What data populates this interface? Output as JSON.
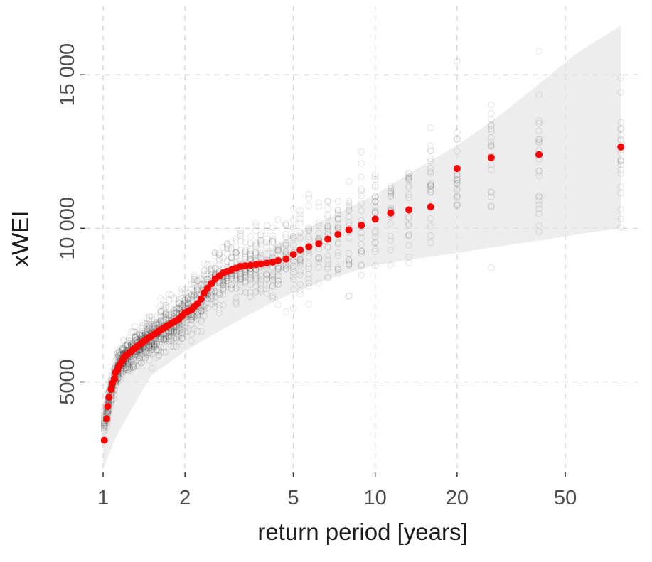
{
  "chart_data": {
    "type": "scatter",
    "title": "",
    "xlabel": "return period [years]",
    "ylabel": "xWEI",
    "x_scale": "log10",
    "x_domain": [
      0.86,
      94
    ],
    "y_domain": [
      2050,
      17250
    ],
    "x_ticks": [
      1,
      2,
      5,
      10,
      20,
      50
    ],
    "x_tick_labels": [
      "1",
      "2",
      "5",
      "10",
      "20",
      "50"
    ],
    "y_ticks": [
      5000,
      10000,
      15000
    ],
    "y_tick_labels": [
      "5000",
      "10 000",
      "15 000"
    ],
    "grid": {
      "dashed": true,
      "color": "#d3d3d3",
      "visible": true
    },
    "legend": "none",
    "colors": {
      "observed": "#ff0000",
      "ensemble_stroke": "#1a1a1a",
      "ribbon": "#e3e3e3",
      "axis_text": "#4d4d4d",
      "axis_title": "#1a1a1a",
      "tick_mark": "#333333",
      "background": "#ffffff"
    },
    "ribbon": {
      "t": [
        1,
        1.1,
        1.25,
        1.5,
        2,
        2.5,
        3,
        4,
        5,
        7,
        10,
        14,
        20,
        28,
        40,
        55,
        80
      ],
      "upper": [
        4300,
        5300,
        6000,
        6900,
        7700,
        8300,
        8800,
        9300,
        9800,
        10400,
        11100,
        11900,
        12700,
        13600,
        14700,
        15700,
        16600
      ],
      "lower": [
        2150,
        3100,
        4000,
        5200,
        6000,
        6500,
        6900,
        7500,
        7900,
        8400,
        8800,
        9000,
        9200,
        9400,
        9600,
        9800,
        10000
      ]
    },
    "observed": {
      "t": [
        80,
        40,
        26.7,
        20,
        16,
        13.3,
        11.4,
        10,
        8.9,
        8,
        7.3,
        6.7,
        6.2,
        5.7,
        5.3,
        5,
        4.7,
        4.4,
        4.2,
        4,
        3.8,
        3.64,
        3.48,
        3.33,
        3.2,
        3.08,
        2.96,
        2.86,
        2.76,
        2.67,
        2.58,
        2.5,
        2.42,
        2.35,
        2.29,
        2.22,
        2.16,
        2.11,
        2.05,
        2,
        1.95,
        1.9,
        1.86,
        1.82,
        1.78,
        1.74,
        1.7,
        1.67,
        1.63,
        1.6,
        1.57,
        1.54,
        1.51,
        1.48,
        1.45,
        1.43,
        1.4,
        1.38,
        1.36,
        1.33,
        1.31,
        1.29,
        1.27,
        1.25,
        1.23,
        1.21,
        1.19,
        1.18,
        1.16,
        1.14,
        1.13,
        1.11,
        1.1,
        1.08,
        1.07,
        1.05,
        1.04,
        1.03,
        1.01
      ],
      "xwei": [
        12650,
        12400,
        12300,
        11950,
        10700,
        10600,
        10500,
        10300,
        10100,
        9950,
        9800,
        9650,
        9500,
        9400,
        9300,
        9150,
        9000,
        8950,
        8900,
        8870,
        8840,
        8820,
        8800,
        8780,
        8760,
        8700,
        8650,
        8600,
        8550,
        8450,
        8350,
        8200,
        8050,
        7900,
        7700,
        7550,
        7450,
        7350,
        7300,
        7250,
        7150,
        7050,
        7000,
        6950,
        6900,
        6850,
        6800,
        6750,
        6700,
        6650,
        6600,
        6550,
        6500,
        6450,
        6400,
        6350,
        6300,
        6250,
        6200,
        6150,
        6100,
        6050,
        6000,
        5950,
        5900,
        5850,
        5800,
        5700,
        5600,
        5500,
        5400,
        5300,
        5100,
        4950,
        4750,
        4500,
        4200,
        3800,
        3100
      ]
    },
    "ensemble": {
      "points_per_cluster": 22,
      "sd_base": 200,
      "sd_log_factor": 3.4,
      "opacity": 0.1,
      "radius": 4.2,
      "stroke_width": 1.2,
      "clip": [
        2000,
        16900
      ],
      "seed": 42
    },
    "style": {
      "observed_radius": 5,
      "ribbon_opacity": 0.65,
      "grid_dash": "7 7"
    }
  }
}
